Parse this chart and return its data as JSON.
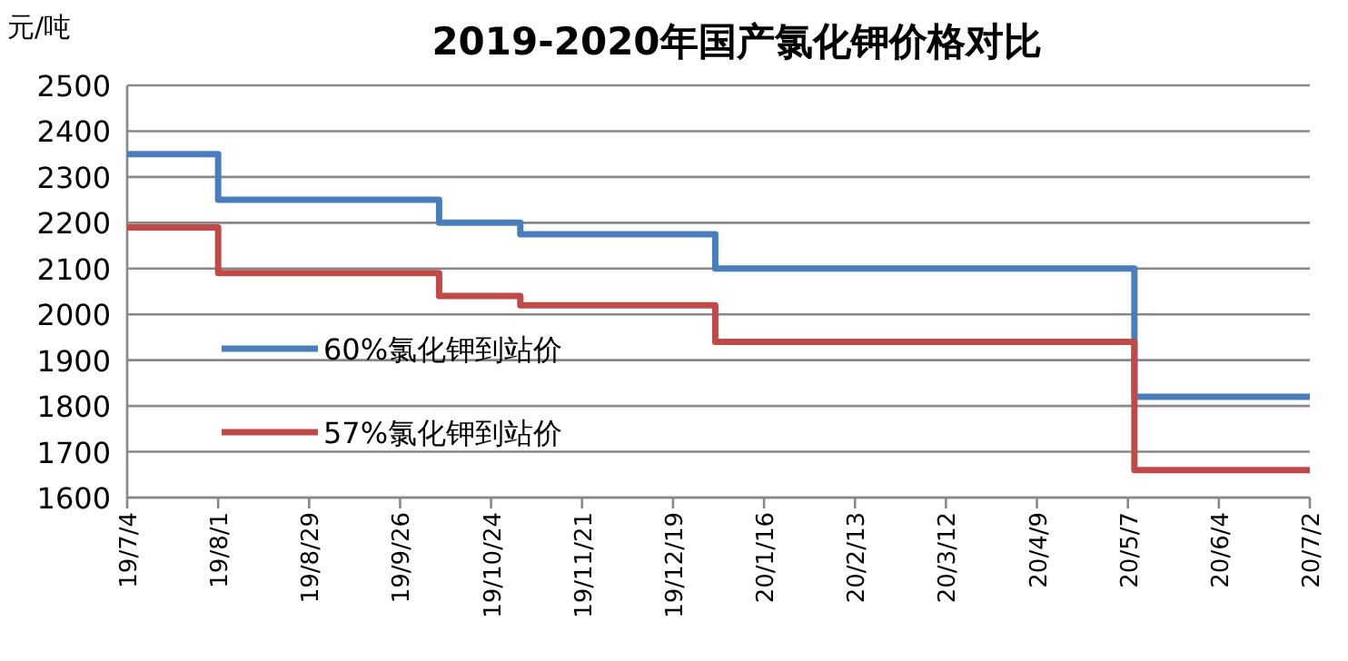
{
  "chart_data": {
    "type": "step",
    "title": "2019-2020年国产氯化钾价格对比",
    "ylabel": "元/吨",
    "series": [
      {
        "name": "60%氯化钾到站价",
        "color": "#4a7ebb",
        "x": [
          "2019-07-04",
          "2019-08-01",
          "2019-10-08",
          "2019-11-02",
          "2020-01-01",
          "2020-05-09",
          "2020-07-02"
        ],
        "values": [
          2350,
          2250,
          2200,
          2175,
          2100,
          1820,
          1820
        ]
      },
      {
        "name": "57%氯化钾到站价",
        "color": "#be4b48",
        "x": [
          "2019-07-04",
          "2019-08-01",
          "2019-10-08",
          "2019-11-02",
          "2020-01-01",
          "2020-05-09",
          "2020-07-02"
        ],
        "values": [
          2190,
          2090,
          2040,
          2020,
          1940,
          1660,
          1660
        ]
      }
    ],
    "xlim": [
      "2019-07-04",
      "2020-07-02"
    ],
    "xticks": [
      {
        "value": "2019-07-04",
        "label": "19/7/4"
      },
      {
        "value": "2019-08-01",
        "label": "19/8/1"
      },
      {
        "value": "2019-08-29",
        "label": "19/8/29"
      },
      {
        "value": "2019-09-26",
        "label": "19/9/26"
      },
      {
        "value": "2019-10-24",
        "label": "19/10/24"
      },
      {
        "value": "2019-11-21",
        "label": "19/11/21"
      },
      {
        "value": "2019-12-19",
        "label": "19/12/19"
      },
      {
        "value": "2020-01-16",
        "label": "20/1/16"
      },
      {
        "value": "2020-02-13",
        "label": "20/2/13"
      },
      {
        "value": "2020-03-12",
        "label": "20/3/12"
      },
      {
        "value": "2020-04-09",
        "label": "20/4/9"
      },
      {
        "value": "2020-05-07",
        "label": "20/5/7"
      },
      {
        "value": "2020-06-04",
        "label": "20/6/4"
      },
      {
        "value": "2020-07-02",
        "label": "20/7/2"
      }
    ],
    "ylim": [
      1600,
      2500
    ],
    "yticks": [
      1600,
      1700,
      1800,
      1900,
      2000,
      2100,
      2200,
      2300,
      2400,
      2500
    ],
    "grid": "y",
    "legend": "left",
    "line_style": "solid",
    "marker": "none"
  }
}
